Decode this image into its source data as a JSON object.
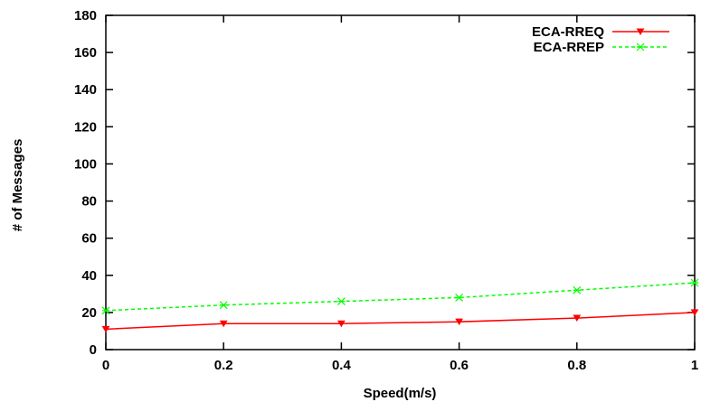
{
  "chart_data": {
    "type": "line",
    "xlabel": "Speed(m/s)",
    "ylabel": "# of Messages",
    "xlim": [
      0,
      1
    ],
    "ylim": [
      0,
      180
    ],
    "x_ticks": [
      "0",
      "0.2",
      "0.4",
      "0.6",
      "0.8",
      "1"
    ],
    "y_ticks": [
      "0",
      "20",
      "40",
      "60",
      "80",
      "100",
      "120",
      "140",
      "160",
      "180"
    ],
    "grid": false,
    "legend_position": "top-right",
    "x": [
      0,
      0.2,
      0.4,
      0.6,
      0.8,
      1
    ],
    "series": [
      {
        "name": "ECA-RREQ",
        "values": [
          11,
          14,
          14,
          15,
          17,
          20
        ],
        "color": "#ff0000",
        "line_style": "solid",
        "marker": "triangle"
      },
      {
        "name": "ECA-RREP",
        "values": [
          21,
          24,
          26,
          28,
          32,
          36
        ],
        "color": "#00ff00",
        "line_style": "dashed",
        "marker": "x"
      }
    ]
  }
}
